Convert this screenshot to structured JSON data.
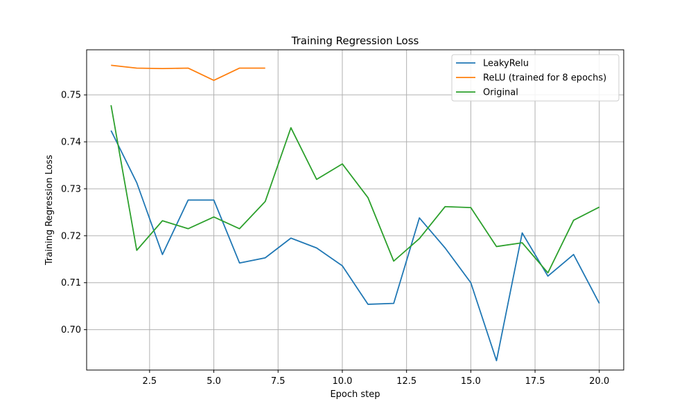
{
  "chart_data": {
    "type": "line",
    "title": "Training Regression Loss",
    "xlabel": "Epoch step",
    "ylabel": "Training Regression Loss",
    "xlim": [
      0.05,
      20.95
    ],
    "ylim": [
      0.6914,
      0.7596
    ],
    "xticks": [
      2.5,
      5.0,
      7.5,
      10.0,
      12.5,
      15.0,
      17.5,
      20.0
    ],
    "xtick_labels": [
      "2.5",
      "5.0",
      "7.5",
      "10.0",
      "12.5",
      "15.0",
      "17.5",
      "20.0"
    ],
    "yticks": [
      0.7,
      0.71,
      0.72,
      0.73,
      0.74,
      0.75
    ],
    "ytick_labels": [
      "0.70",
      "0.71",
      "0.72",
      "0.73",
      "0.74",
      "0.75"
    ],
    "grid": true,
    "legend_position": "top-right",
    "series": [
      {
        "name": "LeakyRelu",
        "color": "#1f77b4",
        "x": [
          1,
          2,
          3,
          4,
          5,
          6,
          7,
          8,
          9,
          10,
          11,
          12,
          13,
          14,
          15,
          16,
          17,
          18,
          19,
          20
        ],
        "values": [
          0.7424,
          0.7313,
          0.716,
          0.7276,
          0.7276,
          0.7142,
          0.7153,
          0.7195,
          0.7174,
          0.7136,
          0.7054,
          0.7056,
          0.7238,
          0.7174,
          0.71,
          0.6934,
          0.7206,
          0.7114,
          0.716,
          0.7056
        ]
      },
      {
        "name": "ReLU (trained for 8 epochs)",
        "color": "#ff7f0e",
        "x": [
          1,
          2,
          3,
          4,
          5,
          6,
          7
        ],
        "values": [
          0.7563,
          0.7557,
          0.7556,
          0.7557,
          0.7531,
          0.7557,
          0.7557
        ]
      },
      {
        "name": "Original",
        "color": "#2ca02c",
        "x": [
          1,
          2,
          3,
          4,
          5,
          6,
          7,
          8,
          9,
          10,
          11,
          12,
          13,
          14,
          15,
          16,
          17,
          18,
          19,
          20
        ],
        "values": [
          0.7478,
          0.7169,
          0.7232,
          0.7215,
          0.724,
          0.7215,
          0.7273,
          0.743,
          0.732,
          0.7353,
          0.7281,
          0.7146,
          0.7194,
          0.7262,
          0.726,
          0.7177,
          0.7185,
          0.7121,
          0.7233,
          0.7261
        ]
      }
    ]
  }
}
